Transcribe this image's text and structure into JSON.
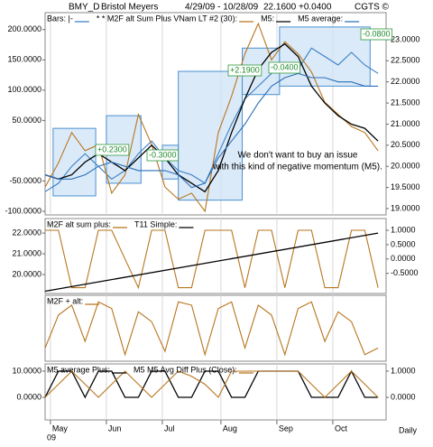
{
  "header": {
    "symbol": "BMY_D",
    "name": "Bristol Meyers",
    "range": "4/29/09 - 10/28/09",
    "last": "22.1600",
    "change": "+0.0400",
    "brand": "CGTS ©"
  },
  "x_axis": {
    "xlim": [
      0,
      128
    ],
    "xticks": [
      {
        "value": 2,
        "label": "May"
      },
      {
        "value": 23,
        "label": "Jun"
      },
      {
        "value": 44,
        "label": "Jul"
      },
      {
        "value": 66,
        "label": "Aug"
      },
      {
        "value": 87,
        "label": "Sep"
      },
      {
        "value": 108,
        "label": "Oct"
      }
    ],
    "year": "09",
    "frequency": "Daily"
  },
  "chart_data": [
    {
      "type": "line",
      "x": [
        0,
        5,
        10,
        15,
        20,
        25,
        30,
        35,
        40,
        45,
        50,
        55,
        60,
        65,
        70,
        75,
        80,
        85,
        90,
        95,
        100,
        105,
        110,
        115,
        120,
        125
      ],
      "ylim": [
        -106,
        228
      ],
      "yticks": [
        {
          "value": 200,
          "label": "200.0000"
        },
        {
          "value": 150,
          "label": "150.0000"
        },
        {
          "value": 100,
          "label": "100.0000"
        },
        {
          "value": 50,
          "label": "50.0000"
        },
        {
          "value": -50,
          "label": "-50.0000"
        },
        {
          "value": -100,
          "label": "-100.0000"
        }
      ],
      "y2lim": [
        18.85,
        23.64
      ],
      "y2ticks": [
        {
          "value": 23,
          "label": "23.0000"
        },
        {
          "value": 22.5,
          "label": "22.5000"
        },
        {
          "value": 22,
          "label": "22.0000"
        },
        {
          "value": 21.5,
          "label": "21.5000"
        },
        {
          "value": 21,
          "label": "21.0000"
        },
        {
          "value": 20.5,
          "label": "20.5000"
        },
        {
          "value": 20,
          "label": "20.0000"
        },
        {
          "value": 19.5,
          "label": "19.5000"
        },
        {
          "value": 19,
          "label": "19.0000"
        }
      ],
      "zones": [
        {
          "x": [
            3,
            19
          ],
          "y": [
            19.3,
            20.9
          ]
        },
        {
          "x": [
            23,
            36
          ],
          "y": [
            19.6,
            21.2
          ]
        },
        {
          "x": [
            44,
            50
          ],
          "y": [
            19.7,
            20.5
          ]
        },
        {
          "x": [
            50,
            74
          ],
          "y": [
            19.2,
            22.25
          ]
        },
        {
          "x": [
            74,
            88
          ],
          "y": [
            21.7,
            22.8
          ]
        },
        {
          "x": [
            88,
            122
          ],
          "y": [
            21.9,
            23.3
          ]
        }
      ],
      "series": [
        {
          "name": "Bars: |-",
          "color": "#3a7fc4",
          "axis": "y2",
          "values": [
            19.4,
            19.6,
            20.0,
            20.3,
            20.0,
            19.7,
            19.9,
            20.3,
            20.6,
            20.2,
            19.9,
            19.8,
            19.6,
            20.3,
            21.0,
            21.6,
            21.9,
            22.2,
            22.4,
            22.3,
            22.8,
            22.6,
            22.4,
            22.7,
            22.4,
            22.2
          ]
        },
        {
          "name": "* * M2F alt Sum Plus VNam LT #2 (30):",
          "color": "#b8751e",
          "values": [
            -60,
            -20,
            30,
            0,
            10,
            -70,
            -40,
            60,
            10,
            -60,
            -80,
            -70,
            -100,
            30,
            90,
            160,
            210,
            150,
            180,
            160,
            130,
            80,
            60,
            40,
            30,
            0
          ]
        },
        {
          "name": "M5:",
          "color": "#000000",
          "axis": "y2",
          "values": [
            19.8,
            19.7,
            19.8,
            20.1,
            20.3,
            20.1,
            19.9,
            20.2,
            20.5,
            20.2,
            19.8,
            19.6,
            19.4,
            19.9,
            20.8,
            21.6,
            22.3,
            22.7,
            22.9,
            22.6,
            21.9,
            21.5,
            21.2,
            21.0,
            20.9,
            20.6
          ]
        },
        {
          "name": "M5 average:",
          "color": "#2b6fb8",
          "axis": "y2",
          "values": [
            19.8,
            19.7,
            19.7,
            19.8,
            20.0,
            20.1,
            20.0,
            19.9,
            19.9,
            19.9,
            19.8,
            19.5,
            19.6,
            20.2,
            20.6,
            21.0,
            21.5,
            21.9,
            22.1,
            22.2,
            22.1,
            22.1,
            22.0,
            22.0,
            21.9,
            21.9
          ]
        }
      ],
      "annotations": [
        "+0.2300",
        "-0.3000",
        "+2.1900",
        "-0.0400",
        "-0.0800"
      ],
      "note": [
        "We don't want to buy an issue",
        "with this kind of negative momentum (M5)."
      ]
    },
    {
      "type": "line",
      "x": [
        0,
        5,
        10,
        15,
        20,
        25,
        30,
        35,
        40,
        45,
        50,
        55,
        60,
        65,
        70,
        75,
        80,
        85,
        90,
        95,
        100,
        105,
        110,
        115,
        120,
        125
      ],
      "ylim": [
        19.09,
        22.7
      ],
      "yticks": [
        {
          "value": 22,
          "label": "22.0000"
        },
        {
          "value": 21,
          "label": "21.0000"
        },
        {
          "value": 20,
          "label": "20.0000"
        }
      ],
      "y2lim": [
        -1.2,
        1.41
      ],
      "y2ticks": [
        {
          "value": 1,
          "label": "1.0000"
        },
        {
          "value": 0.5,
          "label": "0.5000"
        },
        {
          "value": 0,
          "label": "0.0000"
        },
        {
          "value": -0.5,
          "label": "-0.5000"
        }
      ],
      "series": [
        {
          "name": "M2F alt sum plus:",
          "color": "#b8751e",
          "axis": "y2",
          "values": [
            1,
            1,
            -1,
            -1,
            1,
            1,
            0,
            -1,
            1,
            1,
            -1,
            -1,
            1,
            1,
            1,
            -1,
            1,
            1,
            -1,
            1,
            1,
            -1,
            -1,
            1,
            1,
            -1
          ]
        },
        {
          "name": "T11 Simple:",
          "color": "#000000",
          "x": [
            0,
            125
          ],
          "values": [
            19.2,
            22.0
          ]
        }
      ]
    },
    {
      "type": "line",
      "x": [
        0,
        5,
        10,
        15,
        20,
        25,
        30,
        35,
        40,
        45,
        50,
        55,
        60,
        65,
        70,
        75,
        80,
        85,
        90,
        95,
        100,
        105,
        110,
        115,
        120,
        125
      ],
      "ylim": [
        0,
        1
      ],
      "series": [
        {
          "name": "M2F + alt:",
          "color": "#b8751e",
          "values": [
            0.2,
            0.7,
            0.85,
            0.3,
            0.9,
            0.8,
            0.1,
            0.75,
            0.6,
            0.15,
            0.9,
            0.85,
            0.1,
            0.8,
            0.9,
            0.2,
            0.85,
            0.7,
            0.1,
            0.8,
            0.9,
            0.3,
            0.75,
            0.6,
            0.1,
            0.2
          ]
        }
      ]
    },
    {
      "type": "line",
      "x": [
        0,
        5,
        10,
        15,
        20,
        25,
        30,
        35,
        40,
        45,
        50,
        55,
        60,
        65,
        70,
        75,
        80,
        85,
        90,
        95,
        100,
        105,
        110,
        115,
        120,
        125
      ],
      "ylim": [
        -8.6,
        12.76
      ],
      "yticks": [
        {
          "value": 10,
          "label": "10.0000"
        },
        {
          "value": 0,
          "label": "0.0000"
        }
      ],
      "y2lim": [
        -0.86,
        1.276
      ],
      "y2ticks": [
        {
          "value": 1,
          "label": "1.0000"
        },
        {
          "value": 0,
          "label": "0.0000"
        }
      ],
      "series": [
        {
          "name": "M5 average Plus:",
          "color": "#000000",
          "values": [
            0,
            10,
            10,
            0,
            10,
            10,
            0,
            0,
            10,
            10,
            0,
            0,
            10,
            10,
            0,
            0,
            10,
            10,
            10,
            10,
            0,
            0,
            0,
            10,
            0,
            0
          ]
        },
        {
          "name": "M5 M5 Avg Diff Plus (Close):",
          "color": "#b8751e",
          "values": [
            0,
            5,
            10,
            5,
            0,
            5,
            10,
            5,
            0,
            5,
            10,
            8,
            5,
            0,
            10,
            10,
            10,
            10,
            10,
            10,
            5,
            0,
            5,
            10,
            5,
            0
          ]
        }
      ]
    }
  ]
}
